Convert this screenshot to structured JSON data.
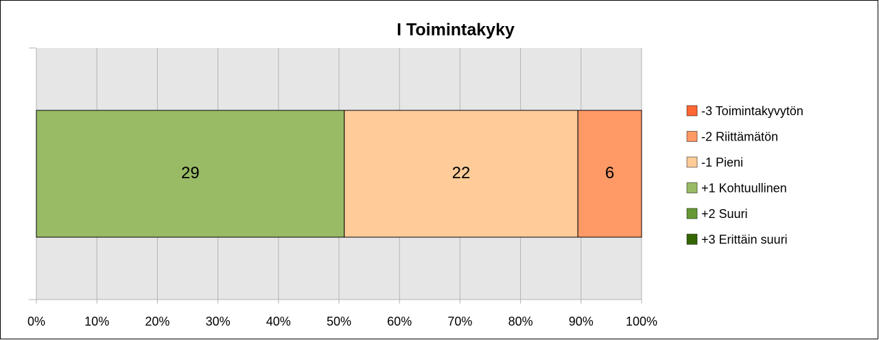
{
  "chart_data": {
    "type": "bar",
    "orientation": "horizontal",
    "stacking": "percent",
    "title": "I Toimintakyky",
    "series": [
      {
        "name": "-3 Toimintakyvytön",
        "color": "#ff6633",
        "values": [
          0
        ]
      },
      {
        "name": "-2 Riittämätön",
        "color": "#ff9966",
        "values": [
          6
        ]
      },
      {
        "name": "-1 Pieni",
        "color": "#ffcc99",
        "values": [
          22
        ]
      },
      {
        "name": "+1 Kohtuullinen",
        "color": "#99bb66",
        "values": [
          29
        ]
      },
      {
        "name": "+2 Suuri",
        "color": "#669933",
        "values": [
          0
        ]
      },
      {
        "name": "+3 Erittäin suuri",
        "color": "#336600",
        "values": [
          0
        ]
      }
    ],
    "xlim": [
      0,
      100
    ],
    "xticks": [
      {
        "value": 0,
        "label": "0%"
      },
      {
        "value": 10,
        "label": "10%"
      },
      {
        "value": 20,
        "label": "20%"
      },
      {
        "value": 30,
        "label": "30%"
      },
      {
        "value": 40,
        "label": "40%"
      },
      {
        "value": 50,
        "label": "50%"
      },
      {
        "value": 60,
        "label": "60%"
      },
      {
        "value": 70,
        "label": "70%"
      },
      {
        "value": 80,
        "label": "80%"
      },
      {
        "value": 90,
        "label": "90%"
      },
      {
        "value": 100,
        "label": "100%"
      }
    ],
    "grid": true,
    "legend": "right"
  }
}
